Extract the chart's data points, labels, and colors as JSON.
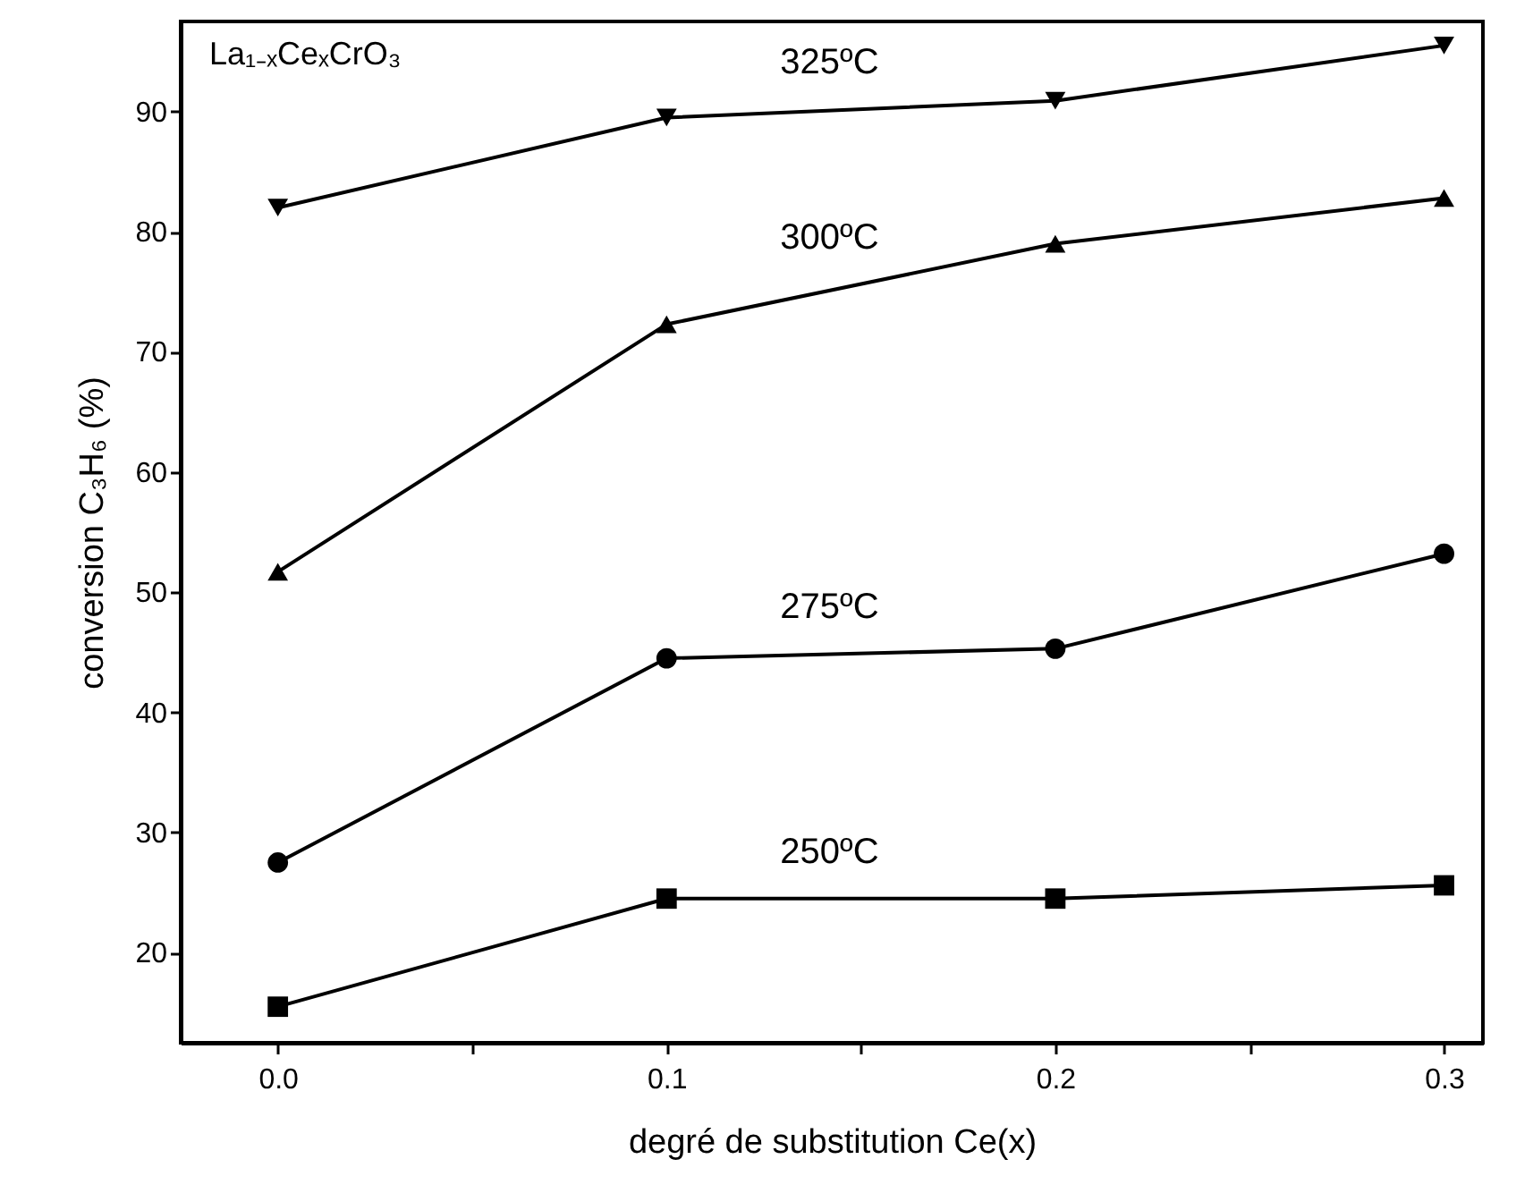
{
  "chart_data": {
    "type": "line",
    "xlabel": "degré de substitution Ce(x)",
    "ylabel": "conversion C₃H₆ (%)",
    "x": [
      0.0,
      0.1,
      0.2,
      0.3
    ],
    "series": [
      {
        "name": "250ºC",
        "color": "#000000",
        "marker": "square",
        "values": [
          15.5,
          24.5,
          24.5,
          25.6
        ]
      },
      {
        "name": "275ºC",
        "color": "#000000",
        "marker": "circle",
        "values": [
          27.5,
          44.5,
          45.3,
          53.2
        ]
      },
      {
        "name": "300ºC",
        "color": "#000000",
        "marker": "triangle",
        "values": [
          51.7,
          72.3,
          79.0,
          82.8
        ]
      },
      {
        "name": "325ºC",
        "color": "#000000",
        "marker": "triangle-down",
        "values": [
          82.0,
          89.5,
          90.9,
          95.5
        ]
      }
    ],
    "annotations": [
      "La₁₋ₓCeₓCrO₃"
    ],
    "xlim": [
      -0.025,
      0.31
    ],
    "xticks": [
      {
        "value": 0,
        "label": "0.0"
      },
      {
        "value": 0.05,
        "label": null
      },
      {
        "value": 0.1,
        "label": "0.1"
      },
      {
        "value": 0.15,
        "label": null
      },
      {
        "value": 0.2,
        "label": "0.2"
      },
      {
        "value": 0.25,
        "label": null
      },
      {
        "value": 0.3,
        "label": "0.3"
      }
    ],
    "ylim": [
      12.5,
      97.5
    ],
    "yticks": [
      20,
      30,
      40,
      50,
      60,
      70,
      80,
      90
    ],
    "grid": false,
    "line_style": "solid"
  }
}
